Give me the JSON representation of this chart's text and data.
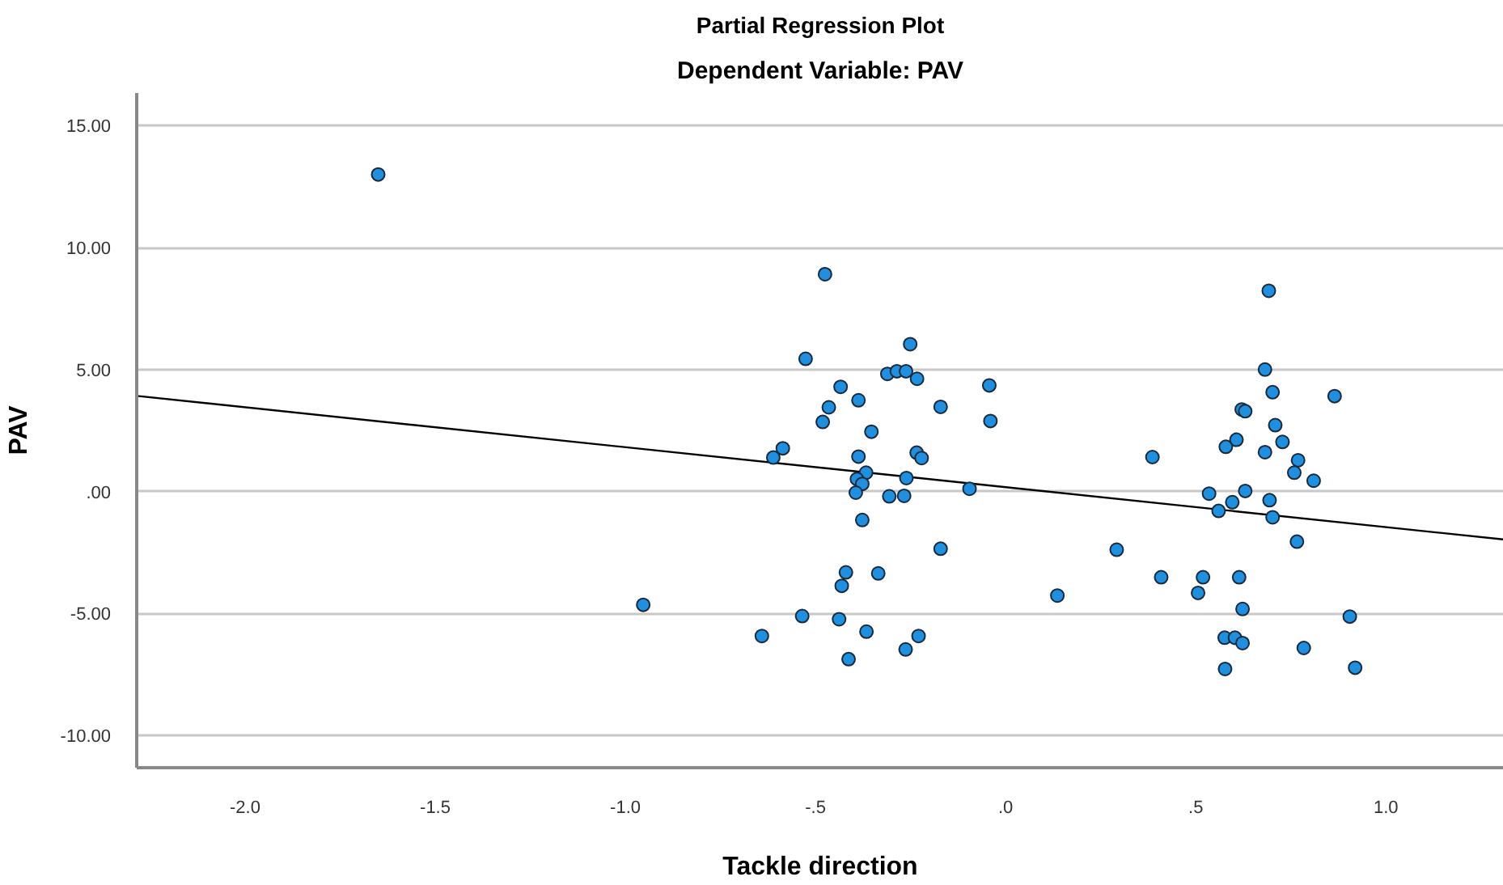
{
  "chart_data": {
    "type": "scatter",
    "title": "Partial Regression Plot",
    "subtitle": "Dependent Variable: PAV",
    "xlabel": "Tackle direction",
    "ylabel": "PAV",
    "xlim": [
      -2.285,
      1.31
    ],
    "ylim": [
      -11.33,
      16.34
    ],
    "xticks": [
      {
        "value": -2.0,
        "label": "-2.0"
      },
      {
        "value": -1.5,
        "label": "-1.5"
      },
      {
        "value": -1.0,
        "label": "-1.0"
      },
      {
        "value": -0.5,
        "label": "-.5"
      },
      {
        "value": 0,
        "label": ".0"
      },
      {
        "value": 0.5,
        "label": ".5"
      },
      {
        "value": 1.0,
        "label": "1.0"
      }
    ],
    "yticks": [
      {
        "value": -10,
        "label": "-10.00"
      },
      {
        "value": -5,
        "label": "-5.00"
      },
      {
        "value": 0,
        "label": ".00"
      },
      {
        "value": 5,
        "label": "5.00"
      },
      {
        "value": 10,
        "label": "10.00"
      },
      {
        "value": 15,
        "label": "15.00"
      }
    ],
    "grid": "y",
    "marker": "circle",
    "series": [
      {
        "color": "#1f8fdf",
        "x": [
          -1.65,
          -0.953,
          -0.475,
          -0.251,
          -0.526,
          -0.311,
          -0.286,
          -0.262,
          -0.233,
          -0.043,
          -0.434,
          -0.387,
          -0.465,
          -0.171,
          -0.481,
          -0.04,
          -0.353,
          -0.586,
          -0.611,
          -0.234,
          -0.221,
          -0.387,
          -0.367,
          -0.391,
          -0.377,
          -0.261,
          -0.394,
          -0.306,
          -0.267,
          -0.095,
          -0.377,
          -0.171,
          -0.42,
          -0.335,
          -0.431,
          -0.535,
          -0.438,
          -0.641,
          -0.366,
          -0.229,
          -0.263,
          -0.413,
          0.692,
          0.682,
          0.702,
          0.865,
          0.621,
          0.63,
          0.709,
          0.607,
          0.579,
          0.728,
          0.682,
          0.386,
          0.769,
          0.759,
          0.81,
          0.535,
          0.63,
          0.694,
          0.596,
          0.56,
          0.702,
          0.766,
          0.292,
          0.409,
          0.519,
          0.614,
          0.136,
          0.506,
          0.623,
          0.905,
          0.576,
          0.603,
          0.623,
          0.784,
          0.577,
          0.919
        ],
        "values": [
          13.0,
          -4.65,
          8.91,
          6.04,
          5.44,
          4.82,
          4.93,
          4.93,
          4.62,
          4.35,
          4.29,
          3.74,
          3.45,
          3.47,
          2.85,
          2.89,
          2.45,
          1.77,
          1.39,
          1.59,
          1.37,
          1.43,
          0.77,
          0.51,
          0.31,
          0.55,
          -0.05,
          -0.2,
          -0.18,
          0.11,
          -1.17,
          -2.35,
          -3.32,
          -3.36,
          -3.87,
          -5.11,
          -5.24,
          -5.93,
          -5.75,
          -5.93,
          -6.48,
          -6.88,
          8.23,
          5.0,
          4.07,
          3.91,
          3.36,
          3.29,
          2.72,
          2.12,
          1.83,
          2.03,
          1.61,
          1.41,
          1.28,
          0.77,
          0.44,
          -0.09,
          0.02,
          -0.36,
          -0.44,
          -0.8,
          -1.06,
          -2.06,
          -2.39,
          -3.52,
          -3.52,
          -3.52,
          -4.27,
          -4.16,
          -4.82,
          -5.13,
          -6.0,
          -6.0,
          -6.22,
          -6.42,
          -7.28,
          -7.23
        ]
      },
      {
        "type": "line",
        "color": "#000000",
        "marker": "none",
        "x": [
          -2.285,
          1.31
        ],
        "values": [
          3.92,
          -1.97
        ]
      }
    ]
  }
}
